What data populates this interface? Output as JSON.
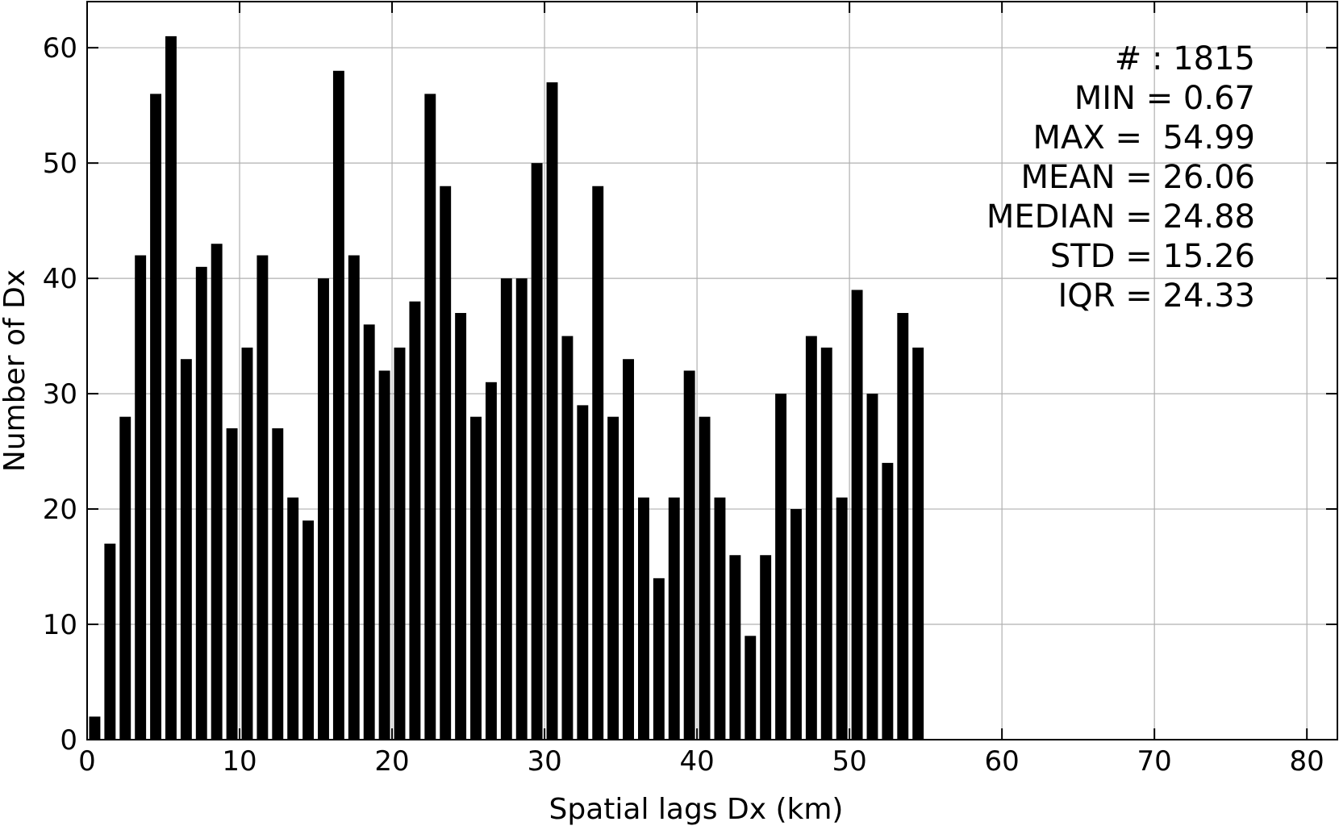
{
  "chart_data": {
    "type": "bar",
    "xlabel": "Spatial lags Dx (km)",
    "ylabel": "Number of Dx",
    "xlim": [
      0,
      82
    ],
    "ylim": [
      0,
      64
    ],
    "x_ticks": [
      0,
      10,
      20,
      30,
      40,
      50,
      60,
      70,
      80
    ],
    "y_ticks": [
      0,
      10,
      20,
      30,
      40,
      50,
      60
    ],
    "grid": true,
    "bar_color": "#000000",
    "bin_width": 1,
    "x": [
      0.5,
      1.5,
      2.5,
      3.5,
      4.5,
      5.5,
      6.5,
      7.5,
      8.5,
      9.5,
      10.5,
      11.5,
      12.5,
      13.5,
      14.5,
      15.5,
      16.5,
      17.5,
      18.5,
      19.5,
      20.5,
      21.5,
      22.5,
      23.5,
      24.5,
      25.5,
      26.5,
      27.5,
      28.5,
      29.5,
      30.5,
      31.5,
      32.5,
      33.5,
      34.5,
      35.5,
      36.5,
      37.5,
      38.5,
      39.5,
      40.5,
      41.5,
      42.5,
      43.5,
      44.5,
      45.5,
      46.5,
      47.5,
      48.5,
      49.5,
      50.5,
      51.5,
      52.5,
      53.5,
      54.5
    ],
    "values": [
      2,
      17,
      28,
      42,
      56,
      61,
      33,
      41,
      43,
      27,
      34,
      42,
      27,
      21,
      19,
      40,
      58,
      42,
      36,
      32,
      34,
      38,
      56,
      48,
      37,
      28,
      31,
      40,
      40,
      50,
      57,
      35,
      29,
      48,
      28,
      33,
      21,
      14,
      21,
      32,
      28,
      21,
      16,
      9,
      16,
      30,
      20,
      35,
      34,
      21,
      39,
      30,
      24,
      37,
      34
    ],
    "annotations": [
      "# : 1815",
      "MIN = 0.67",
      "MAX =  54.99",
      "MEAN = 26.06",
      "MEDIAN = 24.88",
      "STD = 15.26",
      "IQR = 24.33"
    ]
  }
}
